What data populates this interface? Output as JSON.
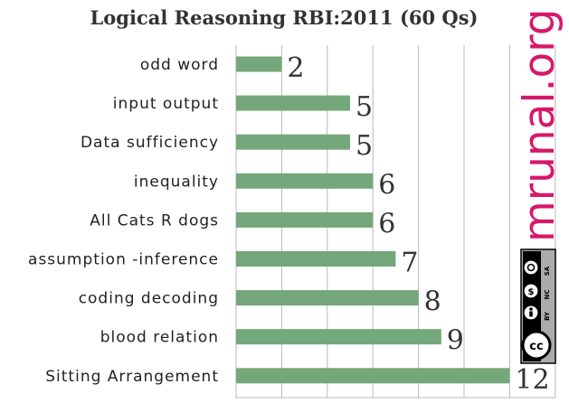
{
  "chart_data": {
    "type": "bar",
    "orientation": "horizontal",
    "title": "Logical Reasoning RBI:2011 (60 Qs)",
    "categories": [
      "odd word",
      "input output",
      "Data sufficiency",
      "inequality",
      "All Cats R dogs",
      "assumption -inference",
      "coding decoding",
      "blood relation",
      "Sitting Arrangement"
    ],
    "values": [
      2,
      5,
      5,
      6,
      6,
      7,
      8,
      9,
      12
    ],
    "xlim": [
      0,
      14
    ],
    "grid": true,
    "bar_color": "#74a77a"
  },
  "watermark": {
    "text": "mrunal.org",
    "color": "#d6186b"
  },
  "license_badge": {
    "label_by": "BY",
    "label_nc": "NC",
    "label_sa": "SA"
  }
}
